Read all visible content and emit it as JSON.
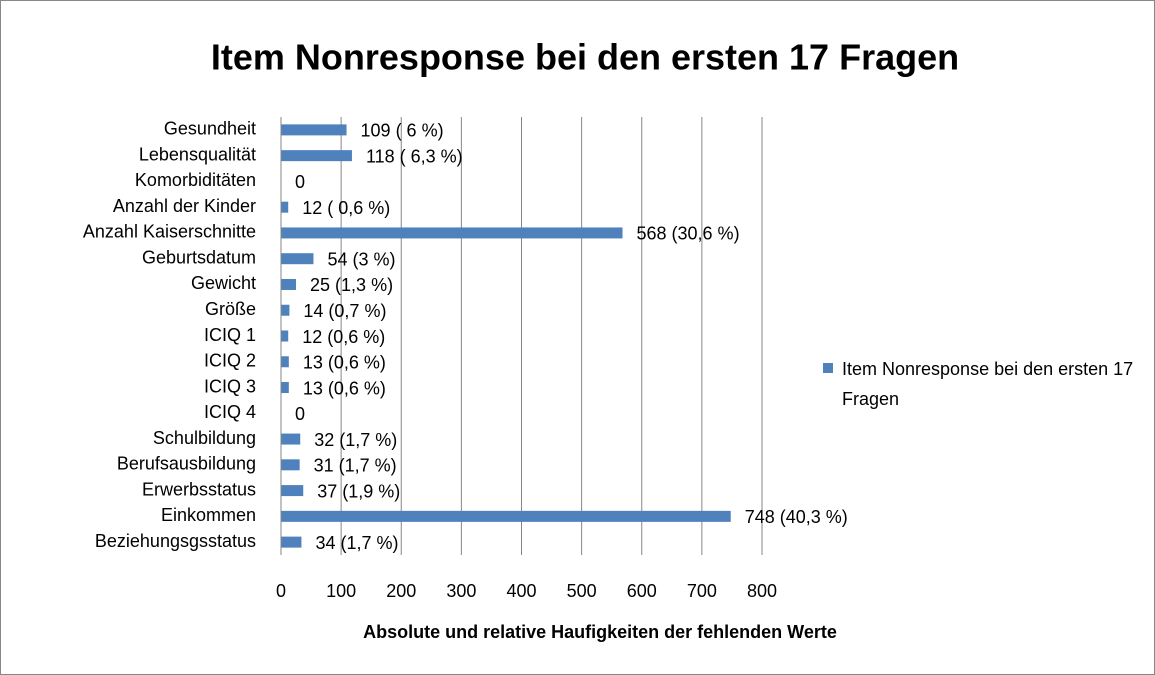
{
  "chart_data": {
    "type": "bar",
    "orientation": "horizontal",
    "title": "Item Nonresponse bei den ersten 17 Fragen",
    "x_label": "Absolute und relative Haufigkeiten der fehlenden Werte",
    "categories": [
      "Gesundheit",
      "Lebensqualität",
      "Komorbiditäten",
      "Anzahl der Kinder",
      "Anzahl Kaiserschnitte",
      "Geburtsdatum",
      "Gewicht",
      "Größe",
      "ICIQ 1",
      "ICIQ 2",
      "ICIQ 3",
      "ICIQ 4",
      "Schulbildung",
      "Berufsausbildung",
      "Erwerbsstatus",
      "Einkommen",
      "Beziehungsgsstatus"
    ],
    "series": [
      {
        "name": "Item Nonresponse bei den ersten 17 Fragen",
        "color": "#4f81bd",
        "values": [
          109,
          118,
          0,
          12,
          568,
          54,
          25,
          14,
          12,
          13,
          13,
          0,
          32,
          31,
          37,
          748,
          34
        ],
        "value_labels": [
          "109 ( 6 %)",
          "118 ( 6,3 %)",
          "0",
          "12 ( 0,6 %)",
          "568 (30,6 %)",
          "54 (3 %)",
          "25 (1,3 %)",
          "14 (0,7 %)",
          "12 (0,6  %)",
          "13 (0,6  %)",
          "13 (0,6  %)",
          "0",
          "32 (1,7  %)",
          "31 (1,7 %)",
          "37 (1,9 %)",
          "748 (40,3 %)",
          "34 (1,7  %)"
        ]
      }
    ],
    "xlim": [
      0,
      800
    ],
    "xticks": [
      0,
      100,
      200,
      300,
      400,
      500,
      600,
      700,
      800
    ],
    "grid": true,
    "legend": "right"
  }
}
